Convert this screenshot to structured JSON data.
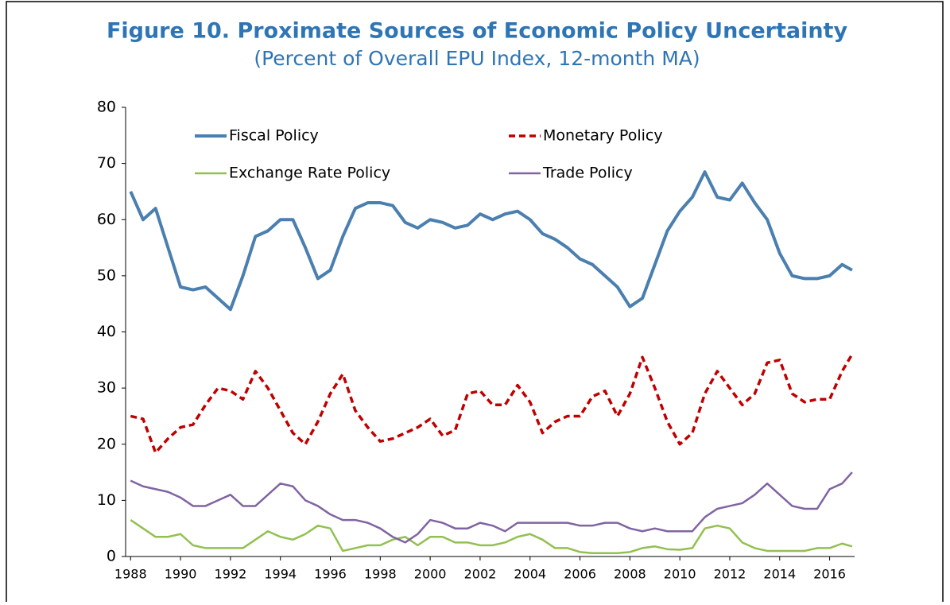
{
  "chart_data": {
    "type": "line",
    "title": "Figure 10. Proximate Sources of Economic Policy Uncertainty",
    "subtitle": "(Percent of Overall EPU Index, 12-month MA)",
    "x": [
      1988,
      1988.5,
      1989,
      1989.5,
      1990,
      1990.5,
      1991,
      1991.5,
      1992,
      1992.5,
      1993,
      1993.5,
      1994,
      1994.5,
      1995,
      1995.5,
      1996,
      1996.5,
      1997,
      1997.5,
      1998,
      1998.5,
      1999,
      1999.5,
      2000,
      2000.5,
      2001,
      2001.5,
      2002,
      2002.5,
      2003,
      2003.5,
      2004,
      2004.5,
      2005,
      2005.5,
      2006,
      2006.5,
      2007,
      2007.5,
      2008,
      2008.5,
      2009,
      2009.5,
      2010,
      2010.5,
      2011,
      2011.5,
      2012,
      2012.5,
      2013,
      2013.5,
      2014,
      2014.5,
      2015,
      2015.5,
      2016,
      2016.5,
      2016.9
    ],
    "series": [
      {
        "name": "Fiscal Policy",
        "color": "#4a7fb0",
        "dash": false,
        "values": [
          65,
          60,
          62,
          55,
          48,
          47.5,
          48,
          46,
          44,
          50,
          57,
          58,
          60,
          60,
          55,
          49.5,
          51,
          57,
          62,
          63,
          63,
          62.5,
          59.5,
          58.5,
          60,
          59.5,
          58.5,
          59,
          61,
          60,
          61,
          61.5,
          60,
          57.5,
          56.5,
          55,
          53,
          52,
          50,
          48,
          44.5,
          46,
          52,
          58,
          61.5,
          64,
          68.5,
          64,
          63.5,
          66.5,
          63,
          60,
          54,
          50,
          49.5,
          49.5,
          50,
          52,
          51
        ]
      },
      {
        "name": "Monetary Policy",
        "color": "#c00000",
        "dash": true,
        "values": [
          25,
          24.5,
          18.5,
          21,
          23,
          23.5,
          27,
          30,
          29.5,
          28,
          33,
          30,
          26,
          22,
          20,
          24,
          29,
          32.5,
          26,
          23,
          20.5,
          21,
          22,
          23,
          24.5,
          21.5,
          22.5,
          29,
          29.5,
          27,
          27,
          30.5,
          27.5,
          22,
          24,
          25,
          25,
          28.5,
          29.5,
          25,
          29,
          35.5,
          30,
          24,
          20,
          22,
          29,
          33,
          30,
          27,
          29,
          34.5,
          35,
          29,
          27.5,
          28,
          28,
          33,
          36
        ]
      },
      {
        "name": "Exchange Rate Policy",
        "color": "#92c050",
        "dash": false,
        "values": [
          6.5,
          5,
          3.5,
          3.5,
          4,
          2,
          1.5,
          1.5,
          1.5,
          1.5,
          3,
          4.5,
          3.5,
          3,
          4,
          5.5,
          5,
          1,
          1.5,
          2,
          2,
          3,
          3.5,
          2,
          3.5,
          3.5,
          2.5,
          2.5,
          2,
          2,
          2.5,
          3.5,
          4,
          3,
          1.5,
          1.5,
          0.8,
          0.6,
          0.6,
          0.6,
          0.8,
          1.5,
          1.8,
          1.3,
          1.2,
          1.5,
          5,
          5.5,
          5,
          2.5,
          1.5,
          1,
          1,
          1,
          1,
          1.5,
          1.5,
          2.3,
          1.8
        ]
      },
      {
        "name": "Trade Policy",
        "color": "#8064a2",
        "dash": false,
        "values": [
          13.5,
          12.5,
          12,
          11.5,
          10.5,
          9,
          9,
          10,
          11,
          9,
          9,
          11,
          13,
          12.5,
          10,
          9,
          7.5,
          6.5,
          6.5,
          6,
          5,
          3.5,
          2.5,
          4,
          6.5,
          6,
          5,
          5,
          6,
          5.5,
          4.5,
          6,
          6,
          6,
          6,
          6,
          5.5,
          5.5,
          6,
          6,
          5,
          4.5,
          5,
          4.5,
          4.5,
          4.5,
          7,
          8.5,
          9,
          9.5,
          11,
          13,
          11,
          9,
          8.5,
          8.5,
          12,
          13,
          15
        ]
      }
    ],
    "xlim": [
      1987.8,
      2017.0
    ],
    "xticks": [
      1988,
      1990,
      1992,
      1994,
      1996,
      1998,
      2000,
      2002,
      2004,
      2006,
      2008,
      2010,
      2012,
      2014,
      2016
    ],
    "ylim": [
      0,
      80
    ],
    "yticks": [
      0,
      10,
      20,
      30,
      40,
      50,
      60,
      70,
      80
    ],
    "grid": false,
    "legend": "top-left"
  }
}
